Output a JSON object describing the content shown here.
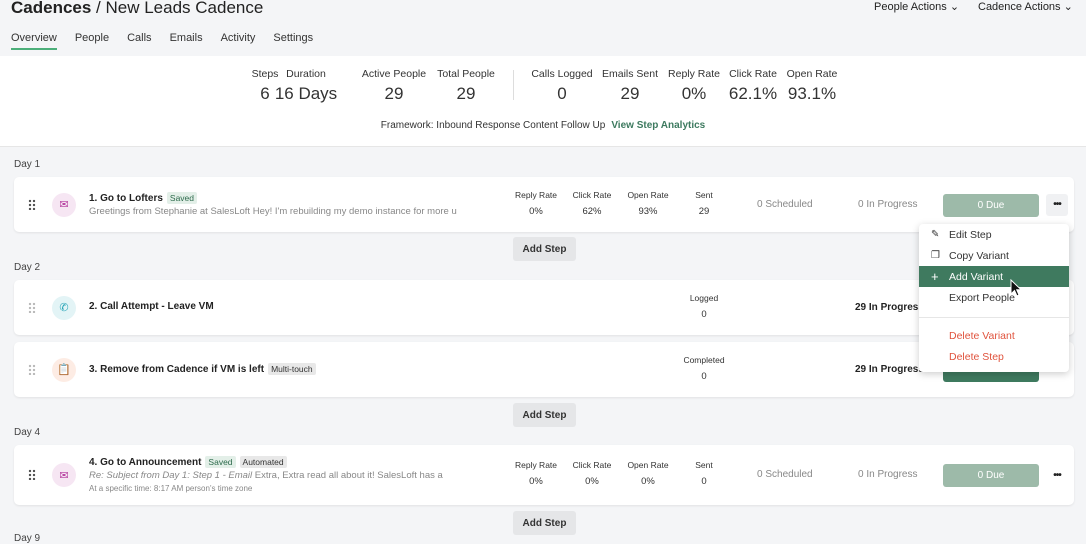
{
  "header": {
    "breadcrumb_root": "Cadences",
    "breadcrumb_sep": " / ",
    "cadence_name": "New Leads Cadence",
    "people_actions": "People Actions",
    "cadence_actions": "Cadence Actions"
  },
  "tabs": [
    "Overview",
    "People",
    "Calls",
    "Emails",
    "Activity",
    "Settings"
  ],
  "stats": [
    {
      "label": "Steps",
      "value": "6"
    },
    {
      "label": "Duration",
      "value": "16 Days"
    },
    {
      "label": "Active People",
      "value": "29"
    },
    {
      "label": "Total People",
      "value": "29"
    },
    {
      "label": "Calls Logged",
      "value": "0"
    },
    {
      "label": "Emails Sent",
      "value": "29"
    },
    {
      "label": "Reply Rate",
      "value": "0%"
    },
    {
      "label": "Click Rate",
      "value": "62.1%"
    },
    {
      "label": "Open Rate",
      "value": "93.1%"
    }
  ],
  "framework": {
    "label": "Framework: Inbound Response Content Follow Up",
    "link": "View Step Analytics"
  },
  "days": [
    "Day 1",
    "Day 2",
    "Day 4",
    "Day 9"
  ],
  "add_step": "Add Step",
  "steps": [
    {
      "title": "1. Go to Lofters",
      "badges": [
        "Saved"
      ],
      "subtitle": "Greetings from Stephanie at SalesLoft Hey!   I'm rebuilding my demo instance for more u",
      "metrics": [
        {
          "label": "Reply Rate",
          "value": "0%"
        },
        {
          "label": "Click Rate",
          "value": "62%"
        },
        {
          "label": "Open Rate",
          "value": "93%"
        },
        {
          "label": "Sent",
          "value": "29"
        }
      ],
      "scheduled": "0 Scheduled",
      "in_progress": "0 In Progress",
      "due": "0 Due"
    },
    {
      "title": "2. Call Attempt - Leave VM",
      "metric": {
        "label": "Logged",
        "value": "0"
      },
      "in_progress": "29 In Progress"
    },
    {
      "title": "3. Remove from Cadence if VM is left",
      "badges": [
        "Multi-touch"
      ],
      "metric": {
        "label": "Completed",
        "value": "0"
      },
      "in_progress": "29 In Progress"
    },
    {
      "title": "4. Go to Announcement",
      "badges": [
        "Saved",
        "Automated"
      ],
      "subtitle_italic": "Re: Subject from Day 1: Step 1 - Email",
      "subtitle": " Extra, Extra read all about it!   SalesLoft has a",
      "timing": "At a specific time: 8:17 AM person's time zone",
      "metrics": [
        {
          "label": "Reply Rate",
          "value": "0%"
        },
        {
          "label": "Click Rate",
          "value": "0%"
        },
        {
          "label": "Open Rate",
          "value": "0%"
        },
        {
          "label": "Sent",
          "value": "0"
        }
      ],
      "scheduled": "0 Scheduled",
      "in_progress": "0 In Progress",
      "due": "0 Due"
    }
  ],
  "menu": {
    "items": [
      {
        "label": "Edit Step",
        "icon": "pencil-icon"
      },
      {
        "label": "Copy Variant",
        "icon": "copy-icon"
      },
      {
        "label": "Add Variant",
        "icon": "plus-icon"
      },
      {
        "label": "Export People"
      },
      {
        "label": "Delete Variant"
      },
      {
        "label": "Delete Step"
      }
    ]
  },
  "colors": {
    "accent": "#3f7a5f",
    "due_disabled": "#9dbaa9",
    "danger": "#e0533d"
  }
}
